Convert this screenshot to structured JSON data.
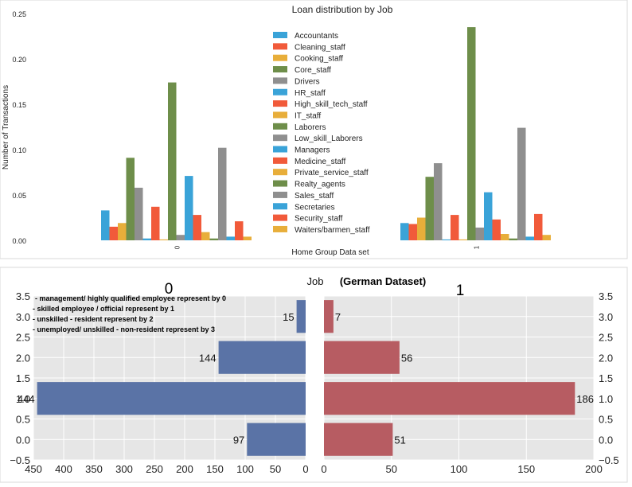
{
  "chart_data": [
    {
      "type": "bar",
      "title": "Loan distribution by Job",
      "xlabel": "Home Group Data set",
      "ylabel": "Number of Transactions",
      "categories": [
        "0",
        "1"
      ],
      "ylim": [
        0,
        0.25
      ],
      "yticks": [
        "0.00",
        "0.05",
        "0.10",
        "0.15",
        "0.20",
        "0.25"
      ],
      "grid": false,
      "legend_position": "center",
      "series": [
        {
          "name": "Accountants",
          "color": "#3aa3d8",
          "values": [
            0.033,
            0.019
          ]
        },
        {
          "name": "Cleaning_staff",
          "color": "#f15a3a",
          "values": [
            0.015,
            0.018
          ]
        },
        {
          "name": "Cooking_staff",
          "color": "#e8ae3a",
          "values": [
            0.019,
            0.025
          ]
        },
        {
          "name": "Core_staff",
          "color": "#6e8e4a",
          "values": [
            0.091,
            0.07
          ]
        },
        {
          "name": "Drivers",
          "color": "#8f8f8f",
          "values": [
            0.058,
            0.085
          ]
        },
        {
          "name": "HR_staff",
          "color": "#3aa3d8",
          "values": [
            0.002,
            0.001
          ]
        },
        {
          "name": "High_skill_tech_staff",
          "color": "#f15a3a",
          "values": [
            0.037,
            0.028
          ]
        },
        {
          "name": "IT_staff",
          "color": "#e8ae3a",
          "values": [
            0.001,
            0.001
          ]
        },
        {
          "name": "Laborers",
          "color": "#6e8e4a",
          "values": [
            0.174,
            0.235
          ]
        },
        {
          "name": "Low_skill_Laborers",
          "color": "#8f8f8f",
          "values": [
            0.006,
            0.014
          ]
        },
        {
          "name": "Managers",
          "color": "#3aa3d8",
          "values": [
            0.071,
            0.053
          ]
        },
        {
          "name": "Medicine_staff",
          "color": "#f15a3a",
          "values": [
            0.028,
            0.023
          ]
        },
        {
          "name": "Private_service_staff",
          "color": "#e8ae3a",
          "values": [
            0.009,
            0.007
          ]
        },
        {
          "name": "Realty_agents",
          "color": "#6e8e4a",
          "values": [
            0.002,
            0.002
          ]
        },
        {
          "name": "Sales_staff",
          "color": "#8f8f8f",
          "values": [
            0.102,
            0.124
          ]
        },
        {
          "name": "Secretaries",
          "color": "#3aa3d8",
          "values": [
            0.004,
            0.004
          ]
        },
        {
          "name": "Security_staff",
          "color": "#f15a3a",
          "values": [
            0.021,
            0.029
          ]
        },
        {
          "name": "Waiters/barmen_staff",
          "color": "#e8ae3a",
          "values": [
            0.004,
            0.006
          ]
        }
      ]
    },
    {
      "type": "bar",
      "title": "Job",
      "subtitle": "(German Dataset)",
      "orientation": "horizontal",
      "y_categories": [
        0,
        1,
        2,
        3
      ],
      "ylim": [
        -0.5,
        3.5
      ],
      "yticks": [
        "−0.5",
        "0.0",
        "0.5",
        "1.0",
        "1.5",
        "2.0",
        "2.5",
        "3.0",
        "3.5"
      ],
      "grid": true,
      "notes": [
        "- management/ highly qualified employee represent by  0",
        "- skilled employee / official represent by 1",
        "- unskilled - resident represent by 2",
        "- unemployed/ unskilled  - non-resident represent by 3"
      ],
      "panels": [
        {
          "name": "0",
          "color": "#5a73a6",
          "values": [
            97,
            444,
            144,
            15
          ],
          "labels": [
            "97",
            "444",
            "144",
            "15"
          ],
          "xlim": [
            450,
            0
          ],
          "xticks": [
            "450",
            "400",
            "350",
            "300",
            "250",
            "200",
            "150",
            "100",
            "50",
            "0"
          ]
        },
        {
          "name": "1",
          "color": "#b75c62",
          "values": [
            51,
            186,
            56,
            7
          ],
          "labels": [
            "51",
            "186",
            "56",
            "7"
          ],
          "xlim": [
            0,
            200
          ],
          "xticks": [
            "0",
            "50",
            "100",
            "150",
            "200"
          ]
        }
      ]
    }
  ]
}
